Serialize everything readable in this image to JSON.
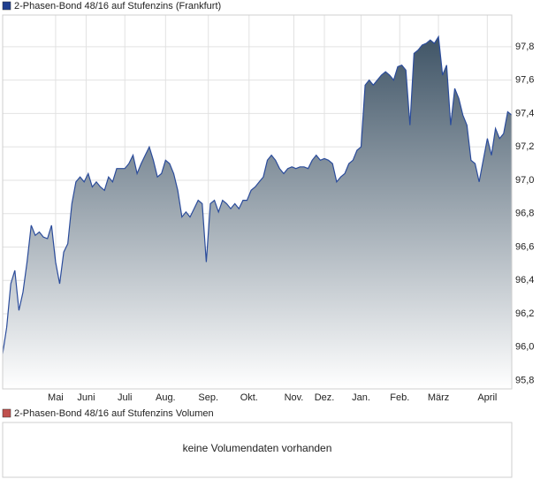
{
  "chart_data": {
    "type": "area",
    "title": "2-Phasen-Bond 48/16 auf Stufenzins (Frankfurt)",
    "volume_title": "2-Phasen-Bond 48/16 auf Stufenzins Volumen",
    "volume_note": "keine Volumendaten vorhanden",
    "color": "#2b4c9b",
    "legend_color": "#1f3f8f",
    "volume_legend_color": "#c0504d",
    "grid": true,
    "xlim": [
      0,
      125
    ],
    "xticks": [
      {
        "value": 13,
        "label": "Mai"
      },
      {
        "value": 20.5,
        "label": "Juni"
      },
      {
        "value": 30,
        "label": "Juli"
      },
      {
        "value": 40,
        "label": "Aug."
      },
      {
        "value": 50.5,
        "label": "Sep."
      },
      {
        "value": 60.5,
        "label": "Okt."
      },
      {
        "value": 71.5,
        "label": "Nov."
      },
      {
        "value": 79,
        "label": "Dez."
      },
      {
        "value": 88,
        "label": "Jan."
      },
      {
        "value": 97.5,
        "label": "Feb."
      },
      {
        "value": 107,
        "label": "März"
      },
      {
        "value": 119,
        "label": "April"
      }
    ],
    "ylim": [
      95.75,
      97.99
    ],
    "yticks": [
      {
        "value": 95.8,
        "label": "95,8"
      },
      {
        "value": 96.0,
        "label": "96,0"
      },
      {
        "value": 96.2,
        "label": "96,2"
      },
      {
        "value": 96.4,
        "label": "96,4"
      },
      {
        "value": 96.6,
        "label": "96,6"
      },
      {
        "value": 96.8,
        "label": "96,8"
      },
      {
        "value": 97.0,
        "label": "97,0"
      },
      {
        "value": 97.2,
        "label": "97,2"
      },
      {
        "value": 97.4,
        "label": "97,4"
      },
      {
        "value": 97.6,
        "label": "97,6"
      },
      {
        "value": 97.8,
        "label": "97,8"
      }
    ],
    "values": [
      95.96,
      96.12,
      96.38,
      96.46,
      96.22,
      96.33,
      96.51,
      96.73,
      96.67,
      96.69,
      96.66,
      96.65,
      96.73,
      96.51,
      96.38,
      96.57,
      96.62,
      96.86,
      96.99,
      97.02,
      96.99,
      97.04,
      96.96,
      96.99,
      96.96,
      96.94,
      97.02,
      96.99,
      97.07,
      97.07,
      97.07,
      97.1,
      97.15,
      97.04,
      97.1,
      97.15,
      97.2,
      97.12,
      97.02,
      97.04,
      97.12,
      97.1,
      97.04,
      96.94,
      96.78,
      96.81,
      96.78,
      96.83,
      96.88,
      96.86,
      96.51,
      96.86,
      96.88,
      96.81,
      96.88,
      96.86,
      96.83,
      96.86,
      96.83,
      96.88,
      96.88,
      96.94,
      96.96,
      96.99,
      97.02,
      97.12,
      97.15,
      97.12,
      97.07,
      97.04,
      97.07,
      97.08,
      97.07,
      97.08,
      97.08,
      97.07,
      97.12,
      97.15,
      97.12,
      97.13,
      97.12,
      97.1,
      96.99,
      97.02,
      97.04,
      97.1,
      97.12,
      97.18,
      97.2,
      97.57,
      97.6,
      97.57,
      97.6,
      97.63,
      97.65,
      97.63,
      97.6,
      97.68,
      97.69,
      97.66,
      97.33,
      97.76,
      97.78,
      97.81,
      97.82,
      97.84,
      97.82,
      97.86,
      97.63,
      97.69,
      97.33,
      97.55,
      97.49,
      97.39,
      97.33,
      97.12,
      97.1,
      96.99,
      97.12,
      97.25,
      97.15,
      97.31,
      97.25,
      97.28,
      97.41,
      97.39
    ]
  }
}
